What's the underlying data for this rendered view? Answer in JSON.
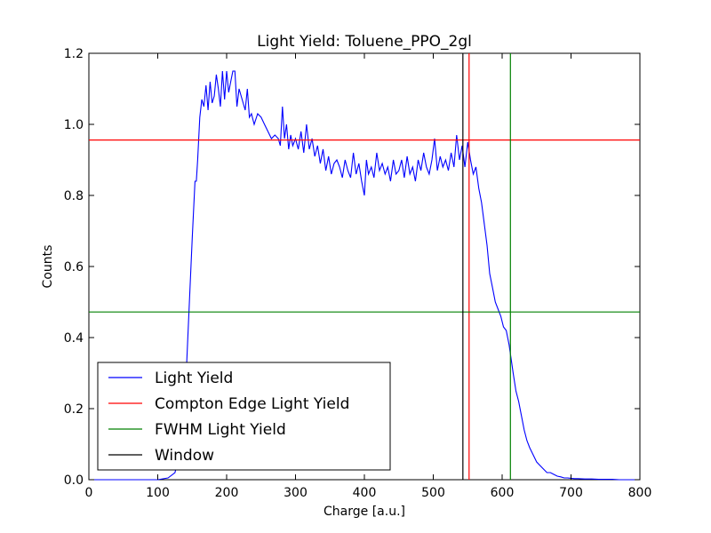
{
  "chart_data": {
    "type": "line",
    "title": "Light Yield: Toluene_PPO_2gl",
    "xlabel": "Charge [a.u.]",
    "ylabel": "Counts",
    "xlim": [
      0,
      800
    ],
    "ylim": [
      0,
      1.2
    ],
    "xticks": [
      "0",
      "100",
      "200",
      "300",
      "400",
      "500",
      "600",
      "700",
      "800"
    ],
    "yticks": [
      "0.0",
      "0.2",
      "0.4",
      "0.6",
      "0.8",
      "1.0",
      "1.2"
    ],
    "grid": false,
    "legend_position": "lower-left",
    "series": [
      {
        "name": "Light Yield",
        "color": "#0000ff",
        "x": [
          0,
          80,
          100,
          115,
          125,
          132,
          138,
          142,
          146,
          150,
          154,
          156,
          158,
          161,
          164,
          167,
          170,
          173,
          176,
          179,
          182,
          185,
          188,
          191,
          194,
          197,
          200,
          203,
          206,
          209,
          212,
          215,
          218,
          221,
          224,
          227,
          230,
          233,
          236,
          240,
          245,
          250,
          255,
          260,
          265,
          270,
          275,
          278,
          281,
          284,
          287,
          290,
          293,
          296,
          300,
          304,
          308,
          312,
          316,
          320,
          324,
          328,
          332,
          336,
          340,
          344,
          348,
          352,
          356,
          360,
          364,
          368,
          372,
          376,
          380,
          384,
          388,
          392,
          396,
          400,
          403,
          406,
          410,
          414,
          418,
          422,
          426,
          430,
          434,
          438,
          442,
          446,
          450,
          454,
          458,
          462,
          466,
          470,
          474,
          478,
          482,
          486,
          490,
          494,
          498,
          502,
          506,
          510,
          514,
          518,
          522,
          526,
          530,
          534,
          538,
          542,
          546,
          550,
          554,
          558,
          562,
          566,
          570,
          574,
          578,
          582,
          586,
          590,
          594,
          598,
          602,
          606,
          610,
          613,
          616,
          620,
          624,
          628,
          632,
          636,
          640,
          645,
          650,
          655,
          660,
          665,
          670,
          675,
          680,
          685,
          690,
          695,
          700,
          705,
          710,
          720,
          730,
          740,
          750,
          760,
          770,
          780,
          790,
          800
        ],
        "y": [
          0.0,
          0.0,
          0.0,
          0.005,
          0.02,
          0.08,
          0.2,
          0.33,
          0.5,
          0.68,
          0.84,
          0.84,
          0.9,
          1.02,
          1.07,
          1.05,
          1.11,
          1.04,
          1.12,
          1.06,
          1.08,
          1.14,
          1.1,
          1.05,
          1.15,
          1.07,
          1.15,
          1.09,
          1.12,
          1.15,
          1.15,
          1.05,
          1.1,
          1.08,
          1.06,
          1.04,
          1.1,
          1.02,
          1.03,
          1.0,
          1.03,
          1.02,
          1.0,
          0.98,
          0.96,
          0.97,
          0.96,
          0.94,
          1.05,
          0.96,
          1.0,
          0.93,
          0.97,
          0.94,
          0.96,
          0.93,
          0.98,
          0.92,
          1.0,
          0.93,
          0.96,
          0.91,
          0.94,
          0.89,
          0.93,
          0.87,
          0.91,
          0.86,
          0.89,
          0.9,
          0.88,
          0.85,
          0.9,
          0.87,
          0.85,
          0.92,
          0.86,
          0.89,
          0.84,
          0.8,
          0.9,
          0.86,
          0.88,
          0.85,
          0.92,
          0.87,
          0.89,
          0.86,
          0.88,
          0.84,
          0.9,
          0.86,
          0.87,
          0.9,
          0.85,
          0.91,
          0.86,
          0.88,
          0.84,
          0.9,
          0.87,
          0.92,
          0.88,
          0.86,
          0.9,
          0.96,
          0.87,
          0.91,
          0.88,
          0.9,
          0.87,
          0.92,
          0.88,
          0.97,
          0.9,
          0.94,
          0.88,
          0.95,
          0.9,
          0.86,
          0.88,
          0.82,
          0.78,
          0.72,
          0.66,
          0.58,
          0.54,
          0.5,
          0.48,
          0.46,
          0.43,
          0.42,
          0.38,
          0.34,
          0.3,
          0.25,
          0.22,
          0.18,
          0.14,
          0.11,
          0.09,
          0.07,
          0.05,
          0.04,
          0.03,
          0.02,
          0.02,
          0.015,
          0.01,
          0.008,
          0.005,
          0.005,
          0.004,
          0.003,
          0.003,
          0.002,
          0.002,
          0.001,
          0.001,
          0.001,
          0.0,
          0.0,
          0.0,
          0.0
        ]
      },
      {
        "name": "Compton Edge Light Yield",
        "color": "#ff0000",
        "kind": "crosshair",
        "x": [
          552
        ],
        "y": [
          0.956
        ]
      },
      {
        "name": "FWHM Light Yield",
        "color": "#008000",
        "kind": "crosshair",
        "x": [
          612
        ],
        "y": [
          0.472
        ]
      },
      {
        "name": "Window",
        "color": "#000000",
        "kind": "vline",
        "x": [
          543
        ]
      }
    ]
  }
}
